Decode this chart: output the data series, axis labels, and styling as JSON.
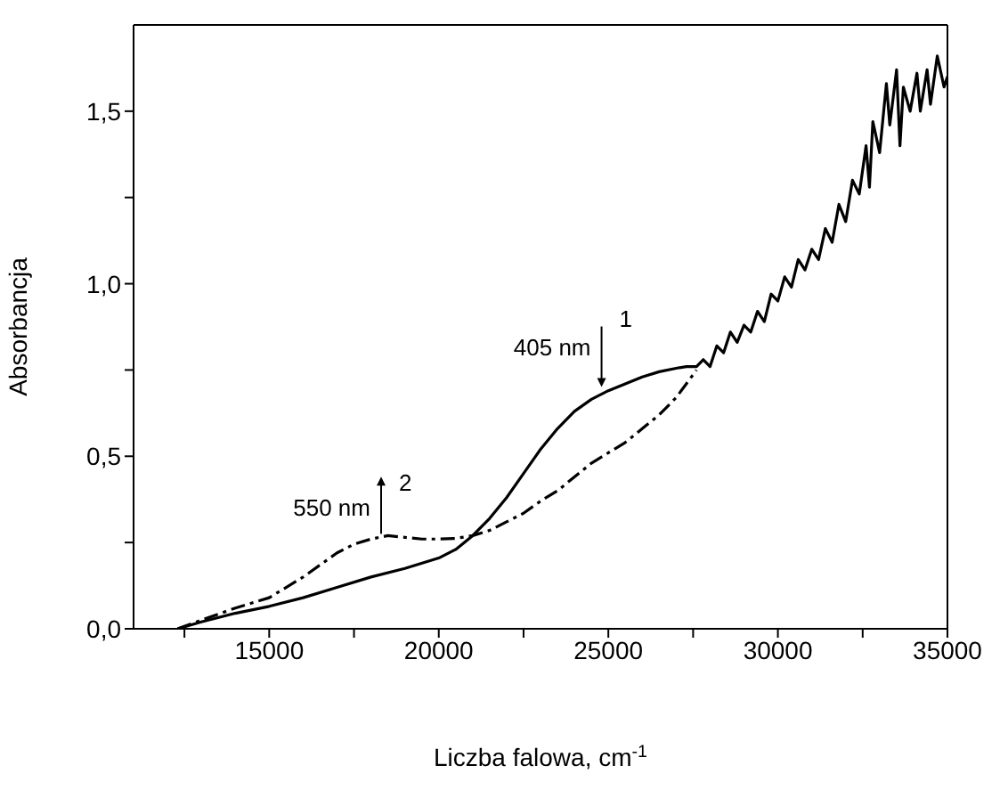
{
  "chart_data": {
    "type": "line",
    "xlabel": "Liczba falowa, cm$^{-1}$",
    "ylabel": "Absorbancja",
    "xlim": [
      11000,
      35000
    ],
    "ylim": [
      0,
      1.75
    ],
    "xticks": [
      {
        "value": 12500,
        "label": null
      },
      15000,
      {
        "value": 17500,
        "label": null
      },
      20000,
      {
        "value": 22500,
        "label": null
      },
      25000,
      {
        "value": 27500,
        "label": null
      },
      30000,
      {
        "value": 32500,
        "label": null
      },
      35000
    ],
    "yticks": [
      {
        "value": 0,
        "label": "0,0"
      },
      {
        "value": 0.25,
        "label": null
      },
      {
        "value": 0.5,
        "label": "0,5"
      },
      {
        "value": 0.75,
        "label": null
      },
      {
        "value": 1,
        "label": "1,0"
      },
      {
        "value": 1.25,
        "label": null
      },
      {
        "value": 1.5,
        "label": "1,5"
      }
    ],
    "series": [
      {
        "color": "#000000",
        "line_style": "solid",
        "x": [
          12300,
          13000,
          14000,
          15000,
          16000,
          17000,
          18000,
          19000,
          20000,
          20500,
          21000,
          21500,
          22000,
          22500,
          23000,
          23500,
          24000,
          24500,
          25000,
          25500,
          26000,
          26500,
          27000,
          27300,
          27600,
          27800,
          28000,
          28200,
          28400,
          28600,
          28800,
          29000,
          29200,
          29400,
          29600,
          29800,
          30000,
          30200,
          30400,
          30600,
          30800,
          31000,
          31200,
          31400,
          31600,
          31800,
          32000,
          32200,
          32400,
          32600,
          32700,
          32800,
          33000,
          33200,
          33300,
          33500,
          33600,
          33700,
          33900,
          34100,
          34200,
          34400,
          34500,
          34700,
          34900,
          35000
        ],
        "values": [
          0,
          0.02,
          0.045,
          0.065,
          0.09,
          0.12,
          0.15,
          0.175,
          0.205,
          0.23,
          0.27,
          0.32,
          0.38,
          0.45,
          0.52,
          0.58,
          0.63,
          0.665,
          0.69,
          0.71,
          0.73,
          0.745,
          0.755,
          0.76,
          0.76,
          0.78,
          0.76,
          0.82,
          0.8,
          0.86,
          0.83,
          0.88,
          0.86,
          0.92,
          0.89,
          0.97,
          0.95,
          1.02,
          0.99,
          1.07,
          1.04,
          1.1,
          1.07,
          1.16,
          1.12,
          1.23,
          1.18,
          1.3,
          1.26,
          1.4,
          1.28,
          1.47,
          1.38,
          1.58,
          1.46,
          1.62,
          1.4,
          1.57,
          1.5,
          1.61,
          1.5,
          1.62,
          1.52,
          1.66,
          1.57,
          1.6
        ]
      },
      {
        "color": "#000000",
        "line_style": "dashdot",
        "x": [
          12300,
          13000,
          14000,
          15000,
          16000,
          17000,
          17500,
          18000,
          18500,
          19000,
          19500,
          20000,
          20500,
          21000,
          21500,
          22000,
          22500,
          23000,
          23500,
          24000,
          24500,
          25000,
          25500,
          26000,
          26500,
          27000,
          27300,
          27600
        ],
        "values": [
          0,
          0.025,
          0.06,
          0.09,
          0.15,
          0.22,
          0.245,
          0.26,
          0.27,
          0.265,
          0.26,
          0.26,
          0.262,
          0.27,
          0.285,
          0.31,
          0.335,
          0.37,
          0.4,
          0.44,
          0.48,
          0.51,
          0.54,
          0.58,
          0.62,
          0.67,
          0.71,
          0.75
        ]
      }
    ],
    "annotations": [
      {
        "text": "405 nm",
        "x": 24800,
        "y": 0.68
      },
      {
        "text": "550 nm",
        "x": 18300,
        "y": 0.265
      },
      "1",
      "2"
    ]
  }
}
